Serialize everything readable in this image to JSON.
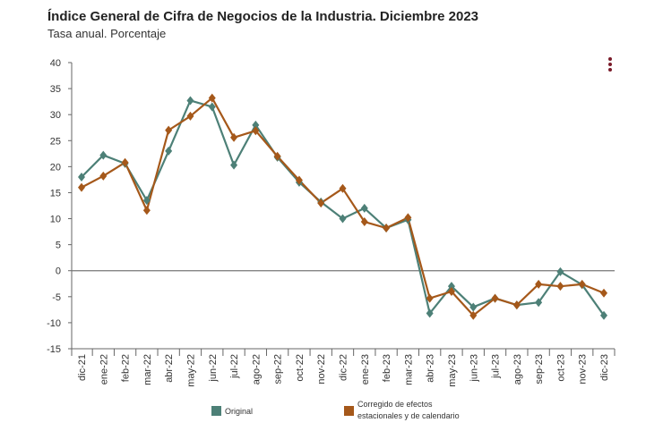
{
  "title": "Índice General de Cifra de Negocios de la Industria. Diciembre 2023",
  "subtitle": "Tasa anual. Porcentaje",
  "menu_icon": "kebab-menu-icon",
  "chart_data": {
    "type": "line",
    "categories": [
      "dic-21",
      "ene-22",
      "feb-22",
      "mar-22",
      "abr-22",
      "may-22",
      "jun-22",
      "jul-22",
      "ago-22",
      "sep-22",
      "oct-22",
      "nov-22",
      "dic-22",
      "ene-23",
      "feb-23",
      "mar-23",
      "abr-23",
      "may-23",
      "jun-23",
      "jul-23",
      "ago-23",
      "sep-23",
      "oct-23",
      "nov-23",
      "dic-23"
    ],
    "ylim": [
      -15,
      40
    ],
    "yticks": [
      -15,
      -10,
      -5,
      0,
      5,
      10,
      15,
      20,
      25,
      30,
      35,
      40
    ],
    "grid": false,
    "legend_position": "bottom",
    "series": [
      {
        "name": "Original",
        "color": "#4d8077",
        "marker": "diamond",
        "values": [
          18.0,
          22.2,
          20.6,
          13.5,
          23.0,
          32.7,
          31.5,
          20.3,
          28.0,
          21.8,
          17.0,
          13.2,
          10.0,
          12.0,
          8.2,
          9.8,
          -8.2,
          -3.0,
          -7.0,
          -5.3,
          -6.6,
          -6.1,
          -0.2,
          -2.7,
          -8.6
        ]
      },
      {
        "name": "Corregido de efectos estacionales y de calendario",
        "color": "#a5581a",
        "marker": "diamond",
        "values": [
          16.0,
          18.2,
          20.8,
          11.6,
          27.0,
          29.7,
          33.2,
          25.6,
          26.9,
          22.0,
          17.4,
          13.0,
          15.8,
          9.4,
          8.2,
          10.2,
          -5.3,
          -4.0,
          -8.6,
          -5.3,
          -6.6,
          -2.6,
          -3.0,
          -2.6,
          -4.3
        ]
      }
    ],
    "legend": {
      "original_label": "Original",
      "corrected_label_line1": "Corregido de efectos",
      "corrected_label_line2": "estacionales y de calendario"
    }
  }
}
